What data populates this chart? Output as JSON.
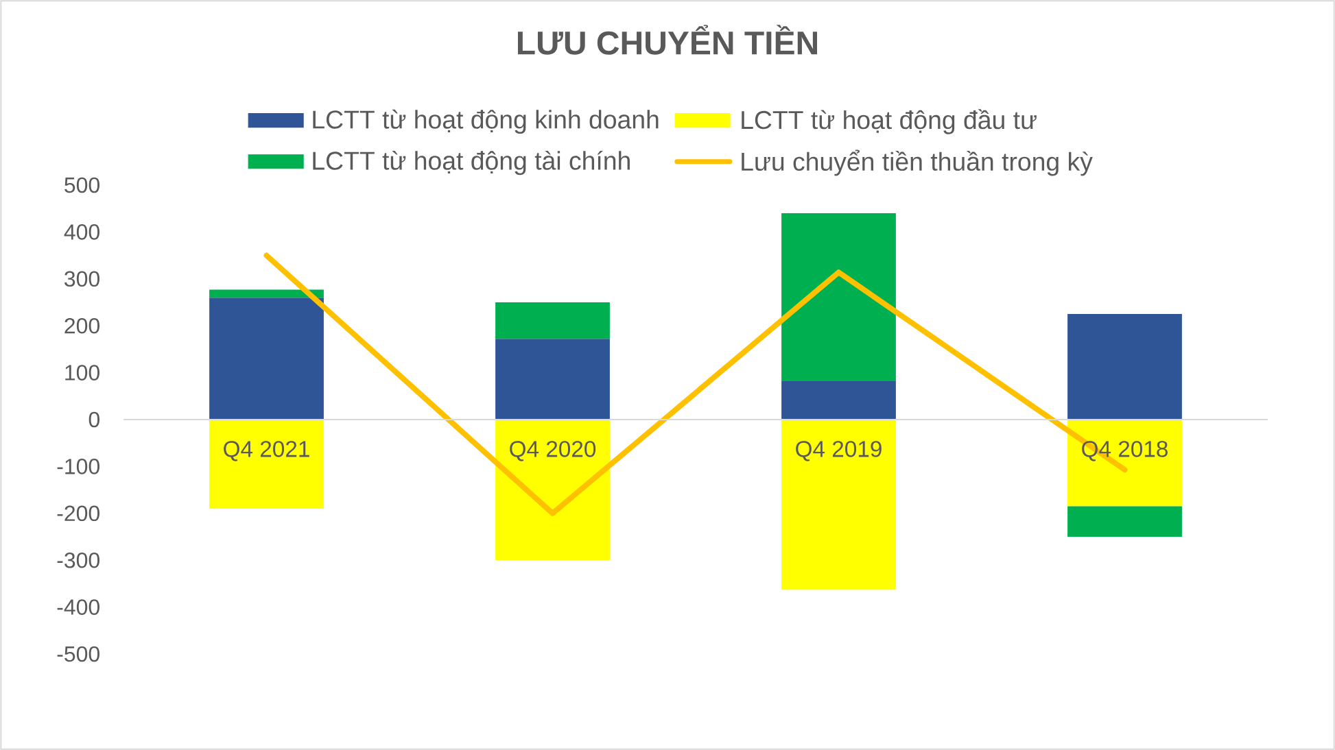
{
  "chart_data": {
    "type": "bar",
    "title": "LƯU CHUYỂN TIỀN",
    "categories": [
      "Q4 2021",
      "Q4 2020",
      "Q4 2019",
      "Q4 2018"
    ],
    "stacked": true,
    "series": [
      {
        "name": "LCTT từ hoạt động kinh doanh",
        "color": "#2f5597",
        "values": [
          260,
          172,
          82,
          225
        ]
      },
      {
        "name": "LCTT từ hoạt động đầu tư",
        "color": "#ffff00",
        "values": [
          -190,
          -300,
          -363,
          -185
        ]
      },
      {
        "name": "LCTT từ hoạt động tài chính",
        "color": "#00b050",
        "values": [
          17,
          78,
          358,
          -65
        ]
      },
      {
        "name": "Lưu chuyển tiền thuần trong kỳ",
        "type": "line",
        "color": "#ffc000",
        "marker": "none",
        "values": [
          350,
          -200,
          314,
          -107
        ]
      }
    ],
    "ylim": [
      -500,
      500
    ],
    "yticks": [
      -500,
      -400,
      -300,
      -200,
      -100,
      0,
      100,
      200,
      300,
      400,
      500
    ],
    "legend": "top"
  }
}
